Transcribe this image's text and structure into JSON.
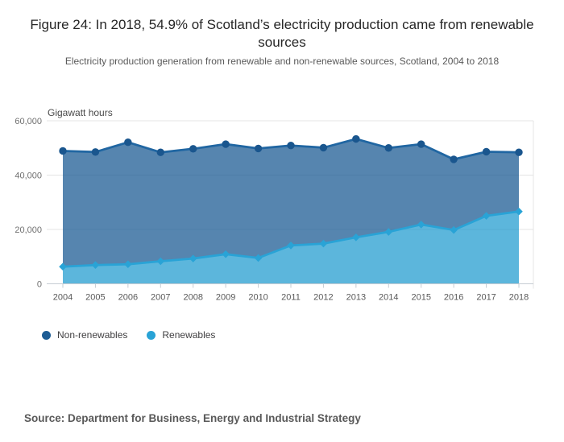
{
  "header": {
    "title": "Figure 24: In 2018, 54.9% of Scotland’s electricity production came from renewable sources",
    "subtitle": "Electricity production generation from renewable and non-renewable sources, Scotland, 2004 to 2018"
  },
  "chart_data": {
    "type": "area",
    "stacked": true,
    "title": "Figure 24: In 2018, 54.9% of Scotland’s electricity production came from renewable sources",
    "xlabel": "",
    "ylabel": "Gigawatt hours",
    "x": [
      2004,
      2005,
      2006,
      2007,
      2008,
      2009,
      2010,
      2011,
      2012,
      2013,
      2014,
      2015,
      2016,
      2017,
      2018
    ],
    "series": [
      {
        "name": "Renewables",
        "marker": "diamond",
        "line_color": "#29a3d6",
        "marker_color": "#29a3d6",
        "fill_color": "rgba(38,158,208,0.75)",
        "values": [
          6300,
          6900,
          7200,
          8300,
          9300,
          10900,
          9500,
          14100,
          14800,
          17100,
          19100,
          21800,
          19800,
          25000,
          26600
        ]
      },
      {
        "name": "Non-renewables",
        "marker": "circle",
        "line_color": "#2066a2",
        "marker_color": "#1a568e",
        "fill_color": "rgba(29,92,148,0.75)",
        "values": [
          42600,
          41600,
          44900,
          40100,
          40400,
          40500,
          40300,
          36800,
          35300,
          36200,
          30900,
          29600,
          26000,
          23600,
          21800
        ]
      }
    ],
    "totals": [
      48900,
      48500,
      52100,
      48400,
      49700,
      51400,
      49800,
      50900,
      50100,
      53300,
      50000,
      51400,
      45800,
      48600,
      48400
    ],
    "ylim": [
      0,
      60000
    ],
    "y_ticks": [
      0,
      20000,
      40000,
      60000
    ],
    "y_tick_labels": [
      "0",
      "20,000",
      "40,000",
      "60,000"
    ],
    "x_tick_labels": [
      "2004",
      "2005",
      "2006",
      "2007",
      "2008",
      "2009",
      "2010",
      "2011",
      "2012",
      "2013",
      "2014",
      "2015",
      "2016",
      "2017",
      "2018"
    ],
    "grid": true,
    "legend_position": "bottom-left",
    "grid_color": "#e4e4e4",
    "axis_color": "#c6ccd3",
    "y_tick_text_color": "#707070",
    "x_tick_text_color": "#595959"
  },
  "legend": {
    "items": [
      {
        "label": "Non-renewables",
        "color": "#1d5c94"
      },
      {
        "label": "Renewables",
        "color": "#29a3d6"
      }
    ]
  },
  "source": {
    "text": "Source: Department for Business, Energy and Industrial Strategy"
  }
}
